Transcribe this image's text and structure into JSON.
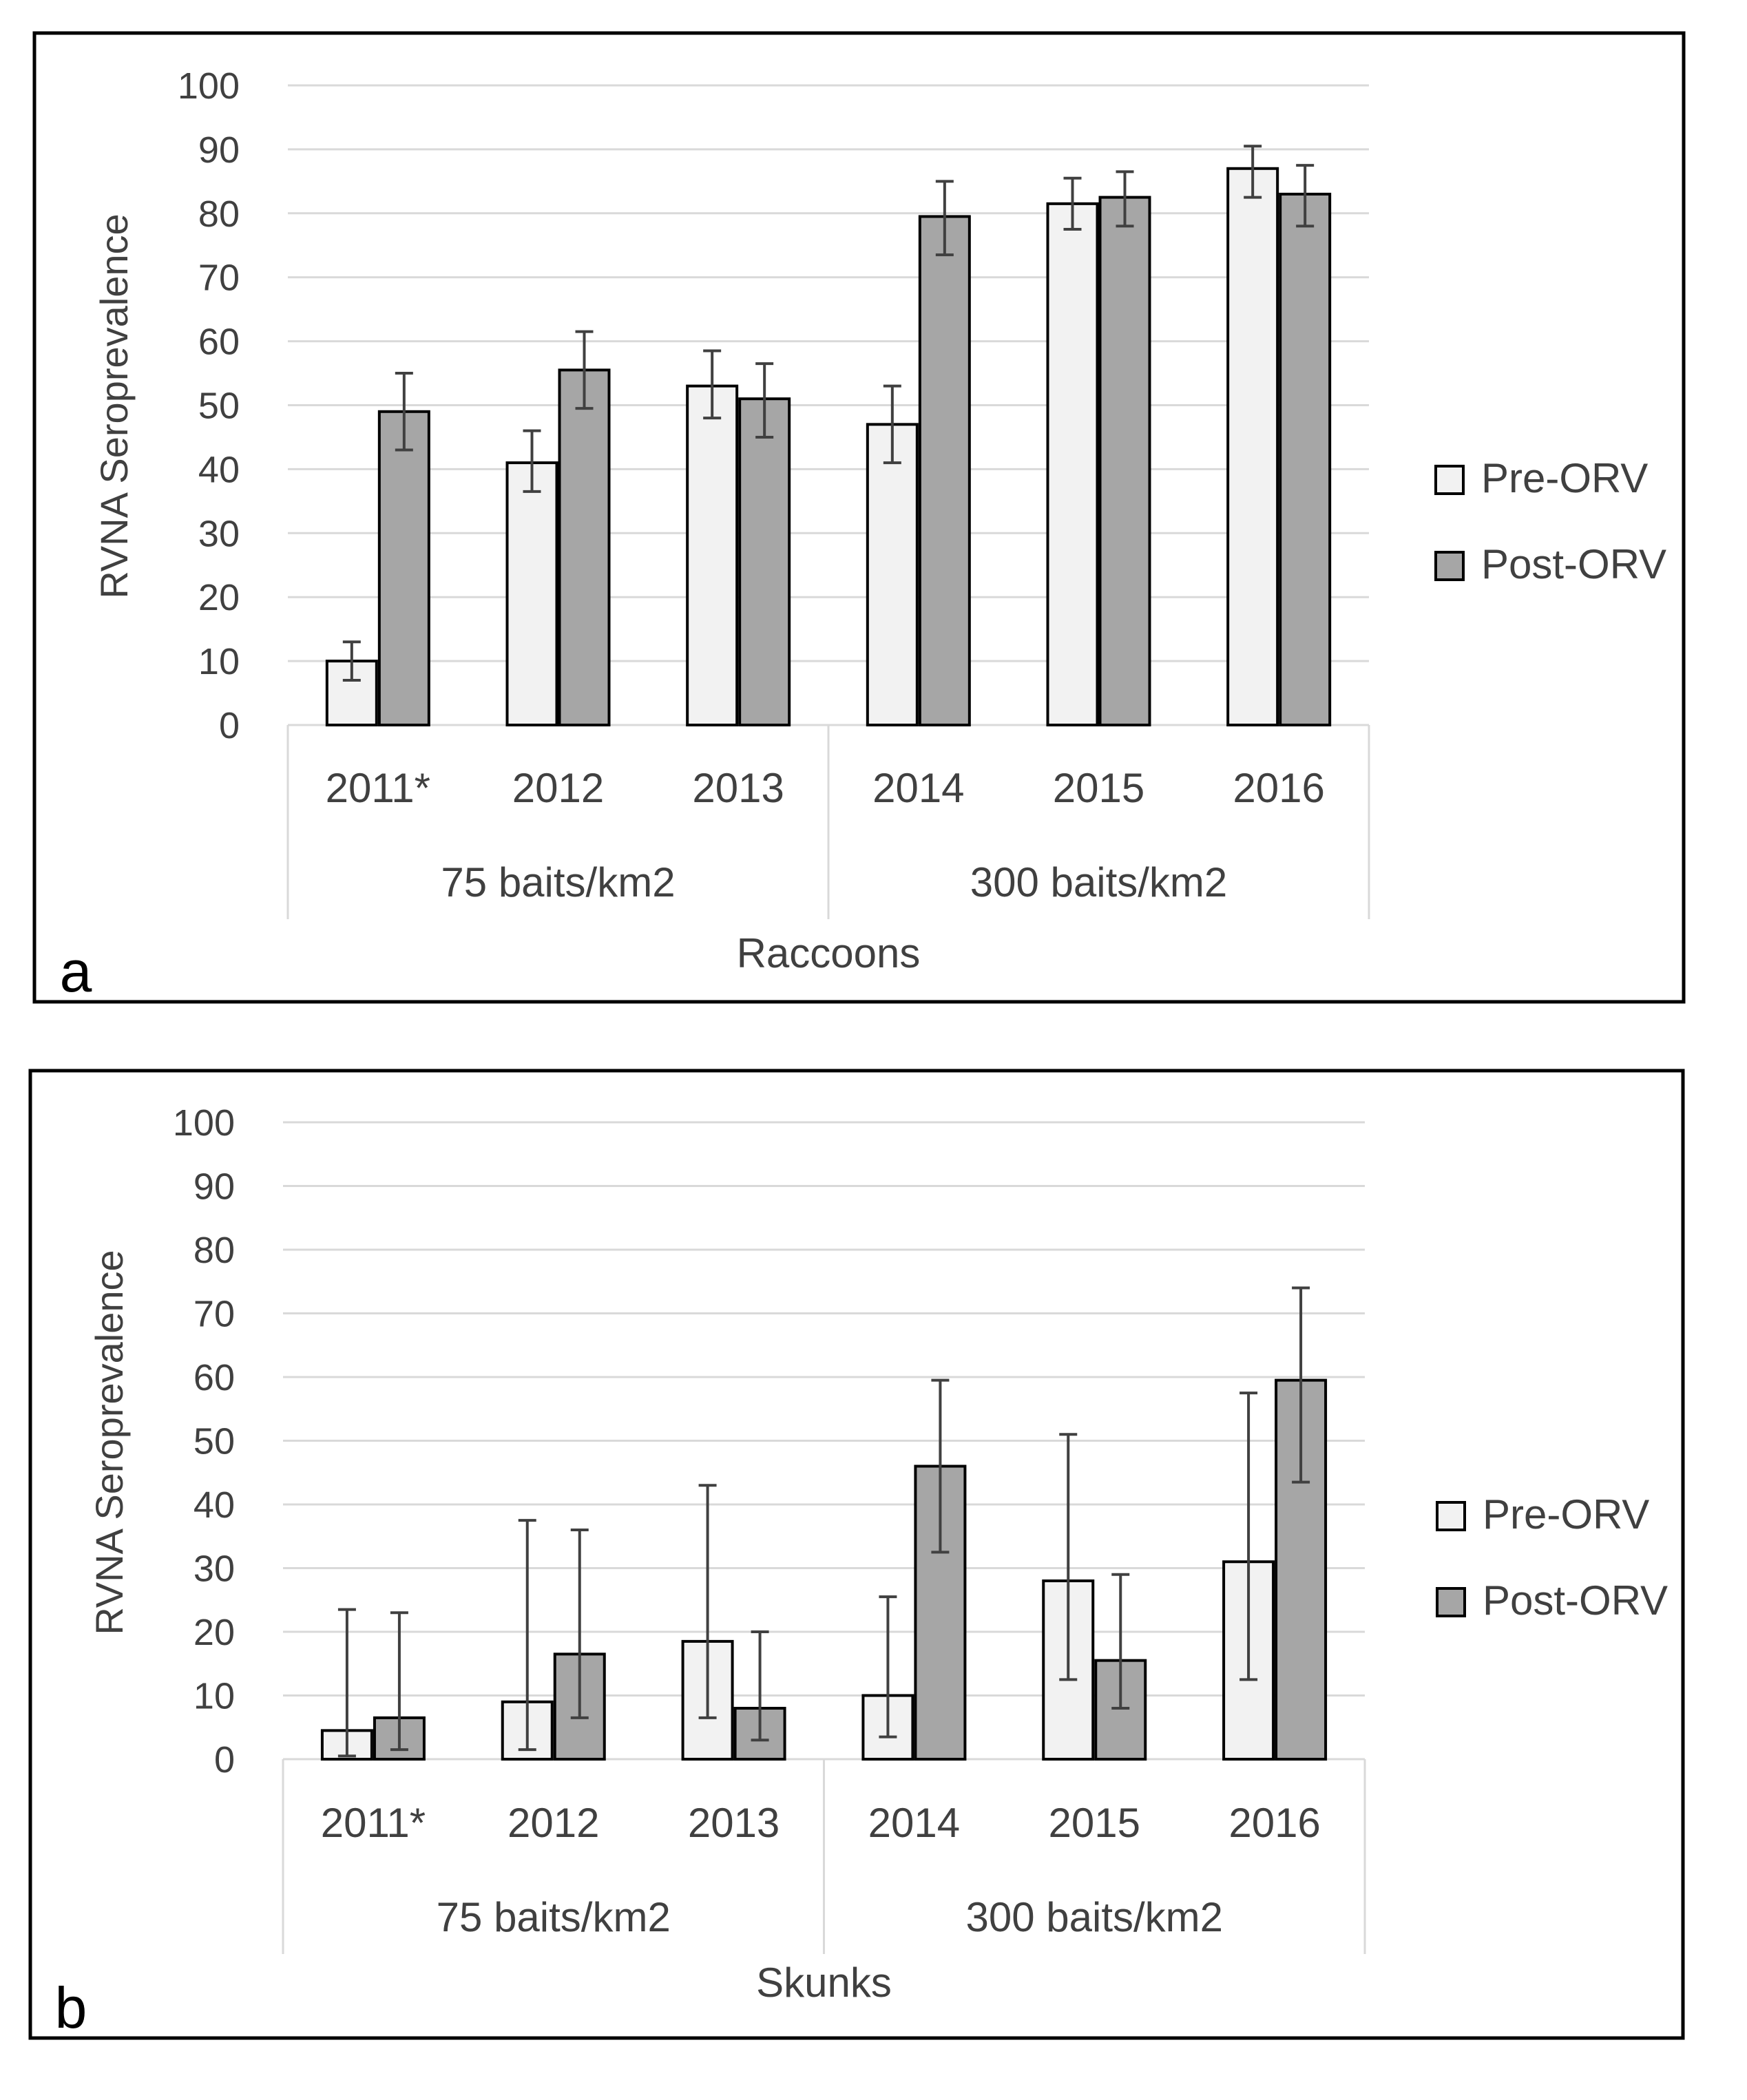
{
  "chart_data": [
    {
      "type": "bar",
      "panel_label": "a",
      "xlabel": "Raccoons",
      "ylabel": "RVNA Seroprevalence",
      "ylim": [
        0,
        100
      ],
      "yticks": [
        "0",
        "10",
        "20",
        "30",
        "40",
        "50",
        "60",
        "70",
        "80",
        "90",
        "100"
      ],
      "categories": [
        "2011*",
        "2012",
        "2013",
        "2014",
        "2015",
        "2016"
      ],
      "groups": [
        {
          "label": "75 baits/km2",
          "categories": [
            "2011*",
            "2012",
            "2013"
          ]
        },
        {
          "label": "300 baits/km2",
          "categories": [
            "2014",
            "2015",
            "2016"
          ]
        }
      ],
      "legend_position": "right",
      "grid": true,
      "series": [
        {
          "name": "Pre-ORV",
          "color": "#f2f2f2",
          "values": [
            10,
            41,
            53,
            47,
            81.5,
            87
          ],
          "err_low": [
            7,
            36.5,
            48,
            41,
            77.5,
            82.5
          ],
          "err_high": [
            13,
            46,
            58.5,
            53,
            85.5,
            90.5
          ]
        },
        {
          "name": "Post-ORV",
          "color": "#a6a6a6",
          "values": [
            49,
            55.5,
            51,
            79.5,
            82.5,
            83
          ],
          "err_low": [
            43,
            49.5,
            45,
            73.5,
            78,
            78
          ],
          "err_high": [
            55,
            61.5,
            56.5,
            85,
            86.5,
            87.5
          ]
        }
      ]
    },
    {
      "type": "bar",
      "panel_label": "b",
      "xlabel": "Skunks",
      "ylabel": "RVNA Seroprevalence",
      "ylim": [
        0,
        100
      ],
      "yticks": [
        "0",
        "10",
        "20",
        "30",
        "40",
        "50",
        "60",
        "70",
        "80",
        "90",
        "100"
      ],
      "categories": [
        "2011*",
        "2012",
        "2013",
        "2014",
        "2015",
        "2016"
      ],
      "groups": [
        {
          "label": "75 baits/km2",
          "categories": [
            "2011*",
            "2012",
            "2013"
          ]
        },
        {
          "label": "300 baits/km2",
          "categories": [
            "2014",
            "2015",
            "2016"
          ]
        }
      ],
      "legend_position": "right",
      "grid": true,
      "series": [
        {
          "name": "Pre-ORV",
          "color": "#f2f2f2",
          "values": [
            4.5,
            9,
            18.5,
            10,
            28,
            31
          ],
          "err_low": [
            0.5,
            1.5,
            6.5,
            3.5,
            12.5,
            12.5
          ],
          "err_high": [
            23.5,
            37.5,
            43,
            25.5,
            51,
            57.5
          ]
        },
        {
          "name": "Post-ORV",
          "color": "#a6a6a6",
          "values": [
            6.5,
            16.5,
            8,
            46,
            15.5,
            59.5
          ],
          "err_low": [
            1.5,
            6.5,
            3,
            32.5,
            8,
            43.5
          ],
          "err_high": [
            23,
            36,
            20,
            59.5,
            29,
            74
          ]
        }
      ]
    }
  ]
}
